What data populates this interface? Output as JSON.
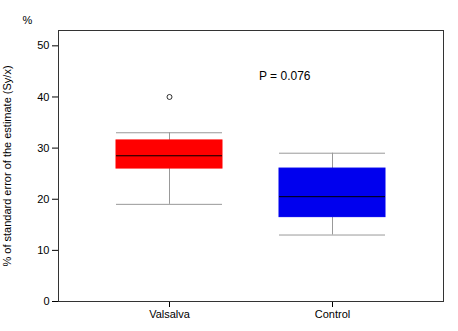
{
  "chart_data": {
    "type": "box",
    "categories": [
      "Valsalva",
      "Control"
    ],
    "q1": [
      26.0,
      16.5
    ],
    "median": [
      28.5,
      20.5
    ],
    "q3": [
      31.5,
      26.0
    ],
    "whisker_low": [
      19.0,
      13.0
    ],
    "whisker_high": [
      33.0,
      29.0
    ],
    "outliers": [
      [
        40.0
      ],
      []
    ],
    "colors": [
      "#ff0000",
      "#0000ee"
    ],
    "ylabel": "% of standard error of the estimate (Sy/x)",
    "ylim": [
      0,
      53
    ],
    "yticks": [
      0,
      10,
      20,
      30,
      40,
      50
    ],
    "annotations": [
      {
        "text": "P = 0.076",
        "y": 44
      },
      {
        "text": "%"
      }
    ]
  }
}
